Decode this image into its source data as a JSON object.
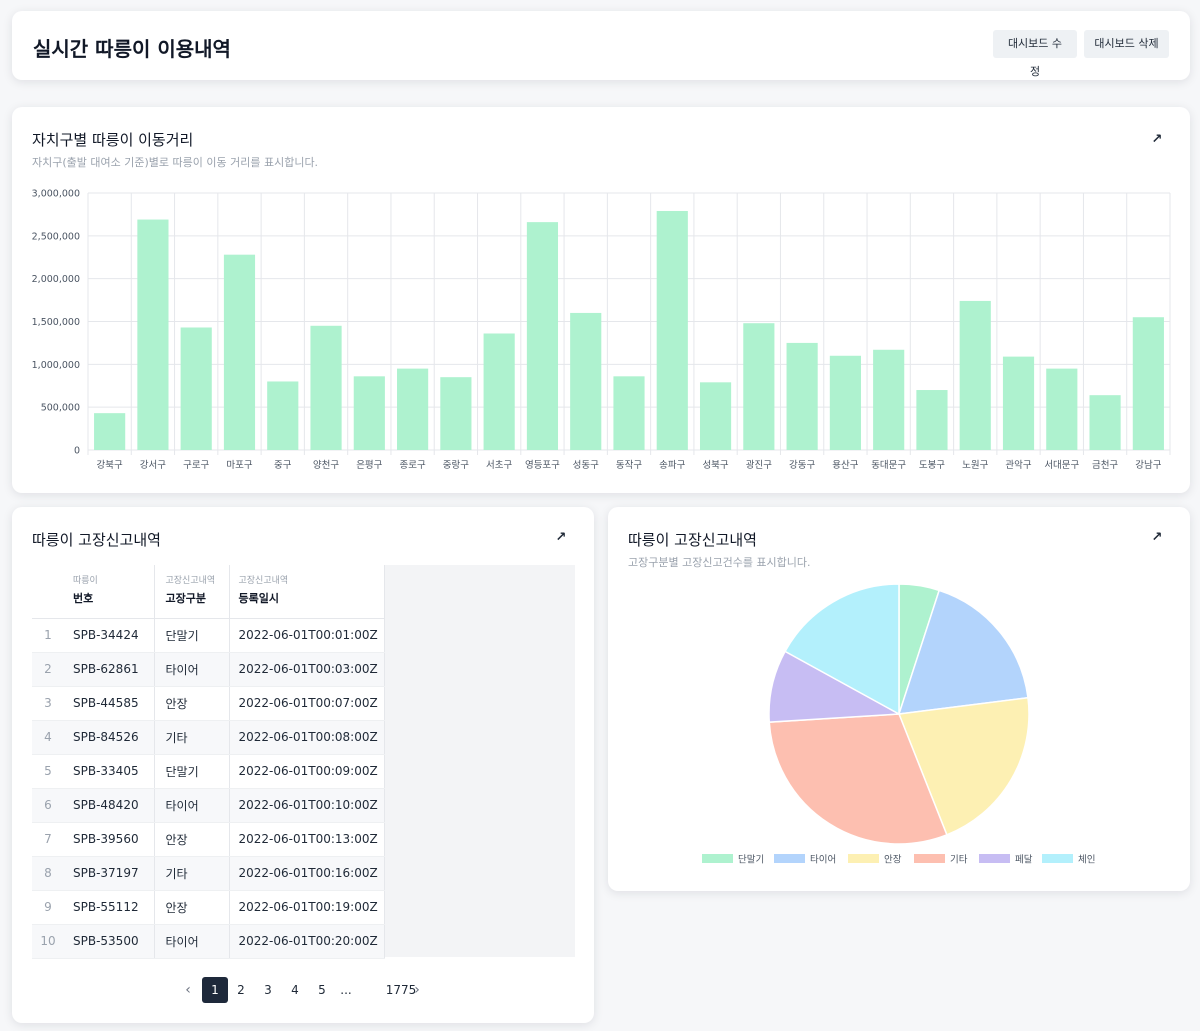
{
  "header": {
    "title": "실시간 따릉이 이용내역",
    "edit_label": "대시보드 수정",
    "delete_label": "대시보드 삭제"
  },
  "bar_card": {
    "title": "자치구별 따릉이 이동거리",
    "subtitle": "자치구(출발 대여소 기준)별로 따릉이 이동 거리를 표시합니다.",
    "expand_icon": "expand-arrow-icon"
  },
  "table_card": {
    "title": "따릉이 고장신고내역",
    "expand_icon": "expand-arrow-icon",
    "columns": [
      {
        "group": "따릉이",
        "label": "번호"
      },
      {
        "group": "고장신고내역",
        "label": "고장구분"
      },
      {
        "group": "고장신고내역",
        "label": "등록일시"
      }
    ],
    "rows": [
      {
        "idx": "1",
        "num": "SPB-34424",
        "type": "단말기",
        "date": "2022-06-01T00:01:00Z"
      },
      {
        "idx": "2",
        "num": "SPB-62861",
        "type": "타이어",
        "date": "2022-06-01T00:03:00Z"
      },
      {
        "idx": "3",
        "num": "SPB-44585",
        "type": "안장",
        "date": "2022-06-01T00:07:00Z"
      },
      {
        "idx": "4",
        "num": "SPB-84526",
        "type": "기타",
        "date": "2022-06-01T00:08:00Z"
      },
      {
        "idx": "5",
        "num": "SPB-33405",
        "type": "단말기",
        "date": "2022-06-01T00:09:00Z"
      },
      {
        "idx": "6",
        "num": "SPB-48420",
        "type": "타이어",
        "date": "2022-06-01T00:10:00Z"
      },
      {
        "idx": "7",
        "num": "SPB-39560",
        "type": "안장",
        "date": "2022-06-01T00:13:00Z"
      },
      {
        "idx": "8",
        "num": "SPB-37197",
        "type": "기타",
        "date": "2022-06-01T00:16:00Z"
      },
      {
        "idx": "9",
        "num": "SPB-55112",
        "type": "안장",
        "date": "2022-06-01T00:19:00Z"
      },
      {
        "idx": "10",
        "num": "SPB-53500",
        "type": "타이어",
        "date": "2022-06-01T00:20:00Z"
      }
    ],
    "pagination": {
      "prev_icon": "chevron-left-icon",
      "next_icon": "chevron-right-icon",
      "pages": [
        "1",
        "2",
        "3",
        "4",
        "5",
        "...",
        "1775"
      ],
      "current": "1"
    }
  },
  "pie_card": {
    "title": "따릉이 고장신고내역",
    "subtitle": "고장구분별 고장신고건수를 표시합니다.",
    "expand_icon": "expand-arrow-icon"
  },
  "chart_data": [
    {
      "type": "bar",
      "title": "자치구별 따릉이 이동거리",
      "subtitle": "자치구(출발 대여소 기준)별로 따릉이 이동 거리를 표시합니다.",
      "categories": [
        "강북구",
        "강서구",
        "구로구",
        "마포구",
        "중구",
        "양천구",
        "은평구",
        "종로구",
        "중랑구",
        "서초구",
        "영등포구",
        "성동구",
        "동작구",
        "송파구",
        "성북구",
        "광진구",
        "강동구",
        "용산구",
        "동대문구",
        "도봉구",
        "노원구",
        "관악구",
        "서대문구",
        "금천구",
        "강남구"
      ],
      "values": [
        430000,
        2690000,
        1430000,
        2280000,
        800000,
        1450000,
        860000,
        950000,
        850000,
        1360000,
        2660000,
        1600000,
        860000,
        2790000,
        790000,
        1480000,
        1250000,
        1100000,
        1170000,
        700000,
        1740000,
        1090000,
        950000,
        640000,
        1550000
      ],
      "ylim": [
        0,
        3000000
      ],
      "yticks": [
        "0",
        "500,000",
        "1,000,000",
        "1,500,000",
        "2,000,000",
        "2,500,000",
        "3,000,000"
      ],
      "ytick_values": [
        0,
        500000,
        1000000,
        1500000,
        2000000,
        2500000,
        3000000
      ],
      "color": "#aef2cf",
      "grid": true
    },
    {
      "type": "pie",
      "title": "따릉이 고장신고내역",
      "subtitle": "고장구분별 고장신고건수를 표시합니다.",
      "labels": [
        "단말기",
        "타이어",
        "안장",
        "기타",
        "페달",
        "체인"
      ],
      "values": [
        5,
        18,
        21,
        30,
        9,
        17
      ],
      "colors": [
        "#aef2cf",
        "#b3d4fc",
        "#fdf0b3",
        "#fdbfb0",
        "#c7bdf3",
        "#b3f0fc"
      ],
      "legend": "bottom"
    }
  ]
}
